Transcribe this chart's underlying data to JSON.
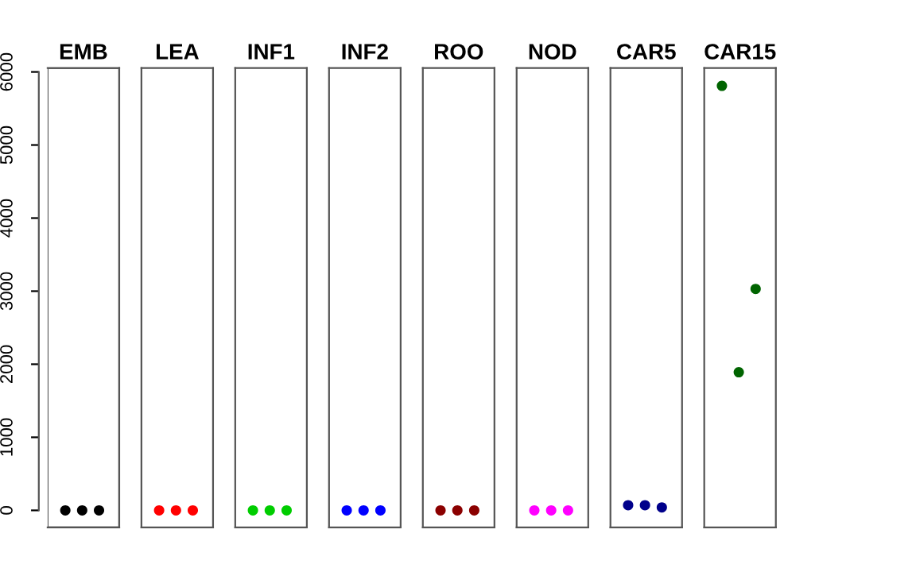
{
  "chart_data": {
    "type": "scatter",
    "categories": [
      "EMB",
      "LEA",
      "INF1",
      "INF2",
      "ROO",
      "NOD",
      "CAR5",
      "CAR15"
    ],
    "marker": "circle",
    "ylim": [
      -233,
      6053
    ],
    "yticks": [
      0,
      1000,
      2000,
      3000,
      4000,
      5000,
      6000
    ],
    "series": [
      {
        "colors": [
          "#000000",
          "#ff0000",
          "#00cd00",
          "#0000ff",
          "#8b0000",
          "#ff00ff",
          "#00008b",
          "#006400"
        ],
        "values": [
          0,
          0,
          0,
          0,
          0,
          0,
          70,
          5810
        ]
      },
      {
        "colors": [
          "#000000",
          "#ff0000",
          "#00cd00",
          "#0000ff",
          "#8b0000",
          "#ff00ff",
          "#00008b",
          "#006400"
        ],
        "values": [
          0,
          0,
          0,
          0,
          0,
          0,
          70,
          1890
        ]
      },
      {
        "colors": [
          "#000000",
          "#ff0000",
          "#00cd00",
          "#0000ff",
          "#8b0000",
          "#ff00ff",
          "#00008b",
          "#006400"
        ],
        "values": [
          0,
          0,
          0,
          0,
          0,
          0,
          40,
          3030
        ]
      }
    ]
  }
}
